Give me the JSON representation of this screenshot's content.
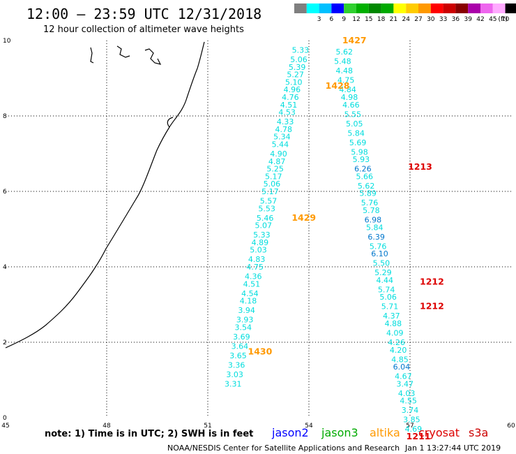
{
  "header": {
    "title": "12:00 – 23:59 UTC 12/31/2018",
    "subtitle": "12 hour collection of altimeter wave heights"
  },
  "colorbar": {
    "unit": "(ft)",
    "bins": [
      {
        "color": "#7f7f7f",
        "label": ""
      },
      {
        "color": "#00ffff",
        "label": "3"
      },
      {
        "color": "#00c0ff",
        "label": "6"
      },
      {
        "color": "#0000ff",
        "label": "9"
      },
      {
        "color": "#30d030",
        "label": "12"
      },
      {
        "color": "#00b000",
        "label": "15"
      },
      {
        "color": "#008800",
        "label": "18"
      },
      {
        "color": "#00aa00",
        "label": "21"
      },
      {
        "color": "#ffff00",
        "label": "24"
      },
      {
        "color": "#ffcc00",
        "label": "27"
      },
      {
        "color": "#ff9900",
        "label": "30"
      },
      {
        "color": "#ff0000",
        "label": "33"
      },
      {
        "color": "#cc0000",
        "label": "36"
      },
      {
        "color": "#880000",
        "label": "39"
      },
      {
        "color": "#aa00aa",
        "label": "42"
      },
      {
        "color": "#ee66ee",
        "label": "45"
      },
      {
        "color": "#ffaaff",
        "label": "70"
      },
      {
        "color": "#000000",
        "label": ""
      }
    ]
  },
  "axes": {
    "x_ticks": [
      "45",
      "48",
      "51",
      "54",
      "57",
      "60"
    ],
    "y_ticks": [
      "10",
      "8",
      "6",
      "4",
      "2",
      "0"
    ]
  },
  "colors": {
    "cyan": "#00dddd",
    "blue_val": "#0077cc",
    "altika": "#ff9900",
    "cryosat": "#dd0000",
    "jason2": "#0000ff",
    "jason3": "#00aa00",
    "s3a": "#cc0000"
  },
  "tracks": {
    "left": [
      {
        "lon": 53.75,
        "lat": 9.75,
        "v": "5.33",
        "c": "cyan"
      },
      {
        "lon": 53.7,
        "lat": 9.5,
        "v": "5.06",
        "c": "cyan"
      },
      {
        "lon": 53.65,
        "lat": 9.3,
        "v": "5.39",
        "c": "cyan"
      },
      {
        "lon": 53.6,
        "lat": 9.1,
        "v": "5.27",
        "c": "cyan"
      },
      {
        "lon": 53.55,
        "lat": 8.9,
        "v": "5.10",
        "c": "cyan"
      },
      {
        "lon": 53.5,
        "lat": 8.7,
        "v": "4.96",
        "c": "cyan"
      },
      {
        "lon": 53.45,
        "lat": 8.5,
        "v": "4.76",
        "c": "cyan"
      },
      {
        "lon": 53.4,
        "lat": 8.3,
        "v": "4.51",
        "c": "cyan"
      },
      {
        "lon": 53.35,
        "lat": 8.1,
        "v": "4.53",
        "c": "cyan"
      },
      {
        "lon": 53.3,
        "lat": 7.85,
        "v": "4.33",
        "c": "cyan"
      },
      {
        "lon": 53.25,
        "lat": 7.65,
        "v": "4.78",
        "c": "cyan"
      },
      {
        "lon": 53.2,
        "lat": 7.45,
        "v": "5.34",
        "c": "cyan"
      },
      {
        "lon": 53.15,
        "lat": 7.25,
        "v": "5.44",
        "c": "cyan"
      },
      {
        "lon": 53.1,
        "lat": 7.0,
        "v": "4.90",
        "c": "cyan"
      },
      {
        "lon": 53.05,
        "lat": 6.8,
        "v": "4.87",
        "c": "cyan"
      },
      {
        "lon": 53.0,
        "lat": 6.6,
        "v": "5.25",
        "c": "cyan"
      },
      {
        "lon": 52.95,
        "lat": 6.4,
        "v": "5.17",
        "c": "cyan"
      },
      {
        "lon": 52.9,
        "lat": 6.2,
        "v": "5.06",
        "c": "cyan"
      },
      {
        "lon": 52.85,
        "lat": 6.0,
        "v": "5.17",
        "c": "cyan"
      },
      {
        "lon": 52.8,
        "lat": 5.75,
        "v": "5.57",
        "c": "cyan"
      },
      {
        "lon": 52.75,
        "lat": 5.55,
        "v": "5.53",
        "c": "cyan"
      },
      {
        "lon": 52.7,
        "lat": 5.3,
        "v": "5.46",
        "c": "cyan"
      },
      {
        "lon": 52.65,
        "lat": 5.1,
        "v": "5.07",
        "c": "cyan"
      },
      {
        "lon": 52.6,
        "lat": 4.85,
        "v": "5.33",
        "c": "cyan"
      },
      {
        "lon": 52.55,
        "lat": 4.65,
        "v": "4.89",
        "c": "cyan"
      },
      {
        "lon": 52.5,
        "lat": 4.45,
        "v": "5.03",
        "c": "cyan"
      },
      {
        "lon": 52.45,
        "lat": 4.2,
        "v": "4.83",
        "c": "cyan"
      },
      {
        "lon": 52.4,
        "lat": 4.0,
        "v": "4.75",
        "c": "cyan"
      },
      {
        "lon": 52.35,
        "lat": 3.75,
        "v": "4.36",
        "c": "cyan"
      },
      {
        "lon": 52.3,
        "lat": 3.55,
        "v": "4.51",
        "c": "cyan"
      },
      {
        "lon": 52.25,
        "lat": 3.3,
        "v": "4.54",
        "c": "cyan"
      },
      {
        "lon": 52.2,
        "lat": 3.1,
        "v": "4.18",
        "c": "cyan"
      },
      {
        "lon": 52.15,
        "lat": 2.85,
        "v": "3.94",
        "c": "cyan"
      },
      {
        "lon": 52.1,
        "lat": 2.6,
        "v": "3.93",
        "c": "cyan"
      },
      {
        "lon": 52.05,
        "lat": 2.4,
        "v": "3.54",
        "c": "cyan"
      },
      {
        "lon": 52.0,
        "lat": 2.15,
        "v": "3.69",
        "c": "cyan"
      },
      {
        "lon": 51.95,
        "lat": 1.9,
        "v": "3.64",
        "c": "cyan"
      },
      {
        "lon": 51.9,
        "lat": 1.65,
        "v": "3.65",
        "c": "cyan"
      },
      {
        "lon": 51.85,
        "lat": 1.4,
        "v": "3.36",
        "c": "cyan"
      },
      {
        "lon": 51.8,
        "lat": 1.15,
        "v": "3.03",
        "c": "cyan"
      },
      {
        "lon": 51.75,
        "lat": 0.9,
        "v": "3.31",
        "c": "cyan"
      }
    ],
    "right": [
      {
        "lon": 55.05,
        "lat": 9.7,
        "v": "5.62",
        "c": "cyan"
      },
      {
        "lon": 55.0,
        "lat": 9.45,
        "v": "5.48",
        "c": "cyan"
      },
      {
        "lon": 55.05,
        "lat": 9.2,
        "v": "4.48",
        "c": "cyan"
      },
      {
        "lon": 55.1,
        "lat": 8.95,
        "v": "4.75",
        "c": "cyan"
      },
      {
        "lon": 55.15,
        "lat": 8.7,
        "v": "4.84",
        "c": "cyan"
      },
      {
        "lon": 55.2,
        "lat": 8.5,
        "v": "4.98",
        "c": "cyan"
      },
      {
        "lon": 55.25,
        "lat": 8.3,
        "v": "4.66",
        "c": "cyan"
      },
      {
        "lon": 55.3,
        "lat": 8.05,
        "v": "5.55",
        "c": "cyan"
      },
      {
        "lon": 55.35,
        "lat": 7.8,
        "v": "5.05",
        "c": "cyan"
      },
      {
        "lon": 55.4,
        "lat": 7.55,
        "v": "5.84",
        "c": "cyan"
      },
      {
        "lon": 55.45,
        "lat": 7.3,
        "v": "5.69",
        "c": "cyan"
      },
      {
        "lon": 55.5,
        "lat": 7.05,
        "v": "5.98",
        "c": "cyan"
      },
      {
        "lon": 55.55,
        "lat": 6.85,
        "v": "5.93",
        "c": "cyan"
      },
      {
        "lon": 55.6,
        "lat": 6.6,
        "v": "6.26",
        "c": "blue_val"
      },
      {
        "lon": 55.65,
        "lat": 6.4,
        "v": "5.66",
        "c": "cyan"
      },
      {
        "lon": 55.7,
        "lat": 6.15,
        "v": "5.62",
        "c": "cyan"
      },
      {
        "lon": 55.75,
        "lat": 5.95,
        "v": "5.89",
        "c": "cyan"
      },
      {
        "lon": 55.8,
        "lat": 5.7,
        "v": "5.76",
        "c": "cyan"
      },
      {
        "lon": 55.85,
        "lat": 5.5,
        "v": "5.78",
        "c": "cyan"
      },
      {
        "lon": 55.9,
        "lat": 5.25,
        "v": "6.98",
        "c": "blue_val"
      },
      {
        "lon": 55.95,
        "lat": 5.05,
        "v": "5.84",
        "c": "cyan"
      },
      {
        "lon": 56.0,
        "lat": 4.8,
        "v": "6.39",
        "c": "blue_val"
      },
      {
        "lon": 56.05,
        "lat": 4.55,
        "v": "5.76",
        "c": "cyan"
      },
      {
        "lon": 56.1,
        "lat": 4.35,
        "v": "6.10",
        "c": "blue_val"
      },
      {
        "lon": 56.15,
        "lat": 4.1,
        "v": "5.50",
        "c": "cyan"
      },
      {
        "lon": 56.2,
        "lat": 3.85,
        "v": "5.29",
        "c": "cyan"
      },
      {
        "lon": 56.25,
        "lat": 3.65,
        "v": "4.44",
        "c": "cyan"
      },
      {
        "lon": 56.3,
        "lat": 3.4,
        "v": "5.74",
        "c": "cyan"
      },
      {
        "lon": 56.35,
        "lat": 3.2,
        "v": "5.06",
        "c": "cyan"
      },
      {
        "lon": 56.4,
        "lat": 2.95,
        "v": "5.71",
        "c": "cyan"
      },
      {
        "lon": 56.45,
        "lat": 2.7,
        "v": "4.37",
        "c": "cyan"
      },
      {
        "lon": 56.5,
        "lat": 2.5,
        "v": "4.88",
        "c": "cyan"
      },
      {
        "lon": 56.55,
        "lat": 2.25,
        "v": "4.09",
        "c": "cyan"
      },
      {
        "lon": 56.6,
        "lat": 2.0,
        "v": "4.26",
        "c": "cyan"
      },
      {
        "lon": 56.65,
        "lat": 1.8,
        "v": "4.20",
        "c": "cyan"
      },
      {
        "lon": 56.7,
        "lat": 1.55,
        "v": "4.85",
        "c": "cyan"
      },
      {
        "lon": 56.75,
        "lat": 1.35,
        "v": "6.04",
        "c": "blue_val"
      },
      {
        "lon": 56.8,
        "lat": 1.1,
        "v": "4.67",
        "c": "cyan"
      },
      {
        "lon": 56.85,
        "lat": 0.9,
        "v": "3.47",
        "c": "cyan"
      },
      {
        "lon": 56.9,
        "lat": 0.65,
        "v": "4.03",
        "c": "cyan"
      },
      {
        "lon": 56.95,
        "lat": 0.45,
        "v": "4.55",
        "c": "cyan"
      },
      {
        "lon": 57.0,
        "lat": 0.2,
        "v": "3.74",
        "c": "cyan"
      },
      {
        "lon": 57.05,
        "lat": -0.05,
        "v": "3.85",
        "c": "cyan"
      },
      {
        "lon": 57.1,
        "lat": -0.3,
        "v": "4.69",
        "c": "cyan"
      }
    ]
  },
  "times": [
    {
      "lon": 55.35,
      "lat": 10.0,
      "label": "1427",
      "c": "altika"
    },
    {
      "lon": 54.85,
      "lat": 8.8,
      "label": "1428",
      "c": "altika"
    },
    {
      "lon": 53.85,
      "lat": 5.3,
      "label": "1429",
      "c": "altika"
    },
    {
      "lon": 52.55,
      "lat": 1.75,
      "label": "1430",
      "c": "altika"
    },
    {
      "lon": 57.3,
      "lat": 6.65,
      "label": "1213",
      "c": "cryosat"
    },
    {
      "lon": 57.65,
      "lat": 3.6,
      "label": "1212",
      "c": "cryosat"
    },
    {
      "lon": 57.65,
      "lat": 2.95,
      "label": "1212",
      "c": "cryosat"
    },
    {
      "lon": 57.25,
      "lat": -0.5,
      "label": "1211",
      "c": "cryosat"
    }
  ],
  "footer": {
    "note": "note:  1) Time is in UTC;  2) SWH is in feet",
    "legend": [
      {
        "name": "jason2",
        "c": "jason2"
      },
      {
        "name": "jason3",
        "c": "jason3"
      },
      {
        "name": "altika",
        "c": "altika"
      },
      {
        "name": "cryosat",
        "c": "cryosat"
      },
      {
        "name": "s3a",
        "c": "s3a"
      }
    ],
    "credit": "NOAA/NESDIS Center for Satellite Applications and Research",
    "timestamp": "Jan  1 13:27:44 UTC 2019"
  }
}
